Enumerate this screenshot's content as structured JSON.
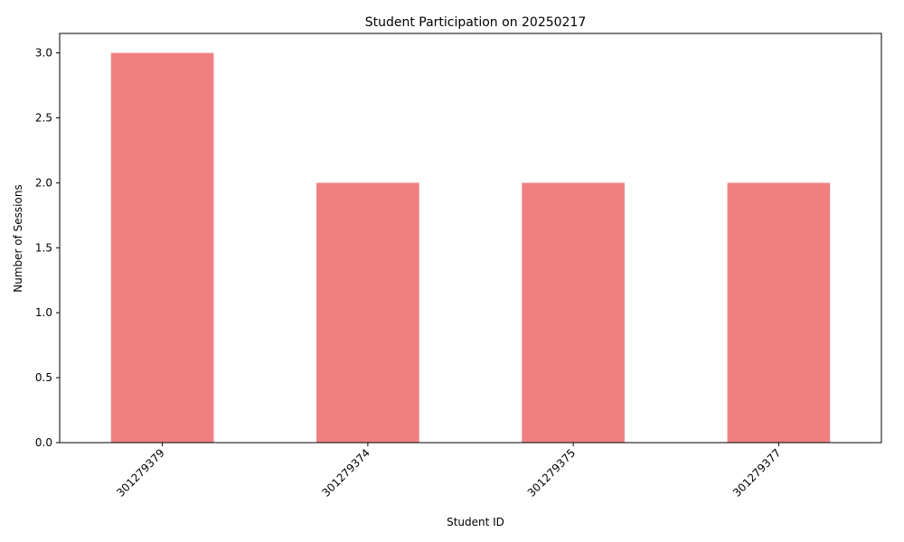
{
  "chart_data": {
    "type": "bar",
    "title": "Student Participation on 20250217",
    "xlabel": "Student ID",
    "ylabel": "Number of Sessions",
    "categories": [
      "301279379",
      "301279374",
      "301279375",
      "301279377"
    ],
    "values": [
      3,
      2,
      2,
      2
    ],
    "ylim": [
      0,
      3.15
    ],
    "yticks": [
      "0.0",
      "0.5",
      "1.0",
      "1.5",
      "2.0",
      "2.5",
      "3.0"
    ],
    "bar_color": "#f08080",
    "grid": false,
    "legend": false
  }
}
